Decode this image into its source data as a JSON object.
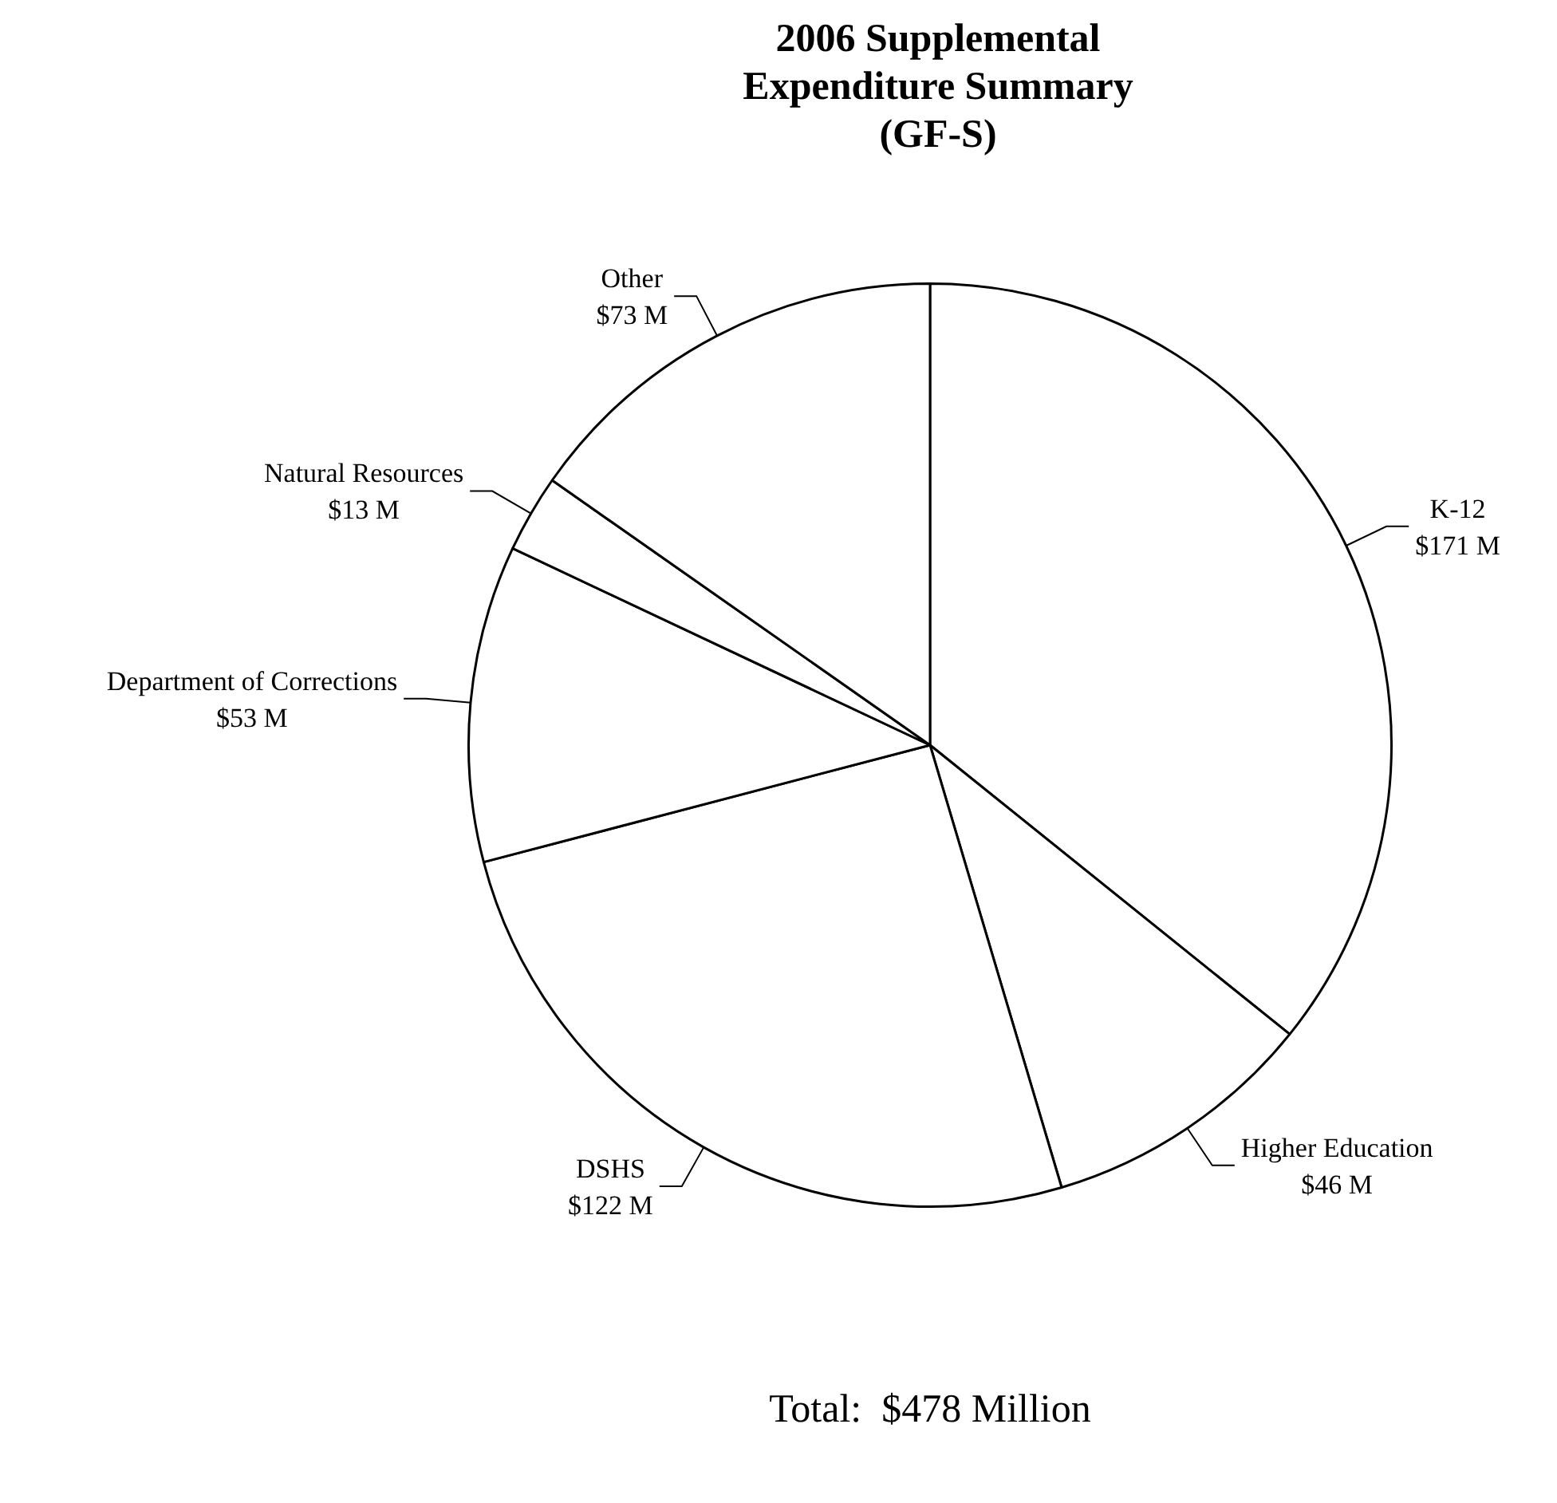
{
  "chart_data": {
    "type": "pie",
    "title": "2006 Supplemental Expenditure Summary (GF-S)",
    "categories": [
      "K-12",
      "Higher Education",
      "DSHS",
      "Department of Corrections",
      "Natural Resources",
      "Other"
    ],
    "values": [
      171,
      46,
      122,
      53,
      13,
      73
    ],
    "value_labels": [
      "$171 M",
      "$46 M",
      "$122 M",
      "$53 M",
      "$13 M",
      "$73 M"
    ],
    "colors": [
      "#ffffff",
      "#ffffff",
      "#ffffff",
      "#ffffff",
      "#ffffff",
      "#ffffff"
    ],
    "legend": false,
    "annotations": [
      "Total:  $478 Million"
    ]
  }
}
